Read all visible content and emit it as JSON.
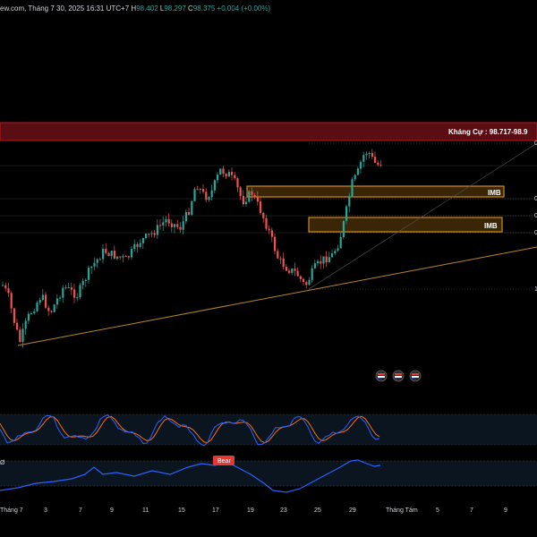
{
  "header": {
    "site_fragment": "ew.com, Tháng 7 30, 2025 16:31 UTC+7",
    "ohlc": [
      {
        "label": "H",
        "value": "98.402"
      },
      {
        "label": "L",
        "value": "98.297"
      },
      {
        "label": "C",
        "value": "98.375"
      }
    ],
    "change": "+0.004 (+0.00%)"
  },
  "resistance_label": "Kháng Cự : 98.717-98.9",
  "imb_boxes": [
    {
      "label": "IMB"
    },
    {
      "label": "IMB"
    }
  ],
  "axis_partial_labels": [
    "0",
    "0",
    "0",
    "0",
    "1"
  ],
  "x_axis_labels": [
    "Tháng 7",
    "3",
    "7",
    "9",
    "11",
    "15",
    "17",
    "19",
    "23",
    "25",
    "29",
    "Tháng Tám",
    "5",
    "7",
    "9"
  ],
  "indicator": {
    "label_fragment": "Ø",
    "bear_badge": "Bear"
  },
  "colors": {
    "background": "#000000",
    "up": "#26a69a",
    "down": "#ef5350",
    "resistance_fill": "#5b0d14",
    "resistance_border": "#b71c1c",
    "imb_fill": "#3a2606",
    "imb_border": "#d08a1a",
    "trendline": "#b8872a",
    "stoch_k": "#2962ff",
    "stoch_d": "#ff6d00",
    "rsi_line": "#2962ff",
    "bear_badge": "#e53935"
  },
  "icons": [
    "flag-icon",
    "flag-icon",
    "flag-icon"
  ]
}
